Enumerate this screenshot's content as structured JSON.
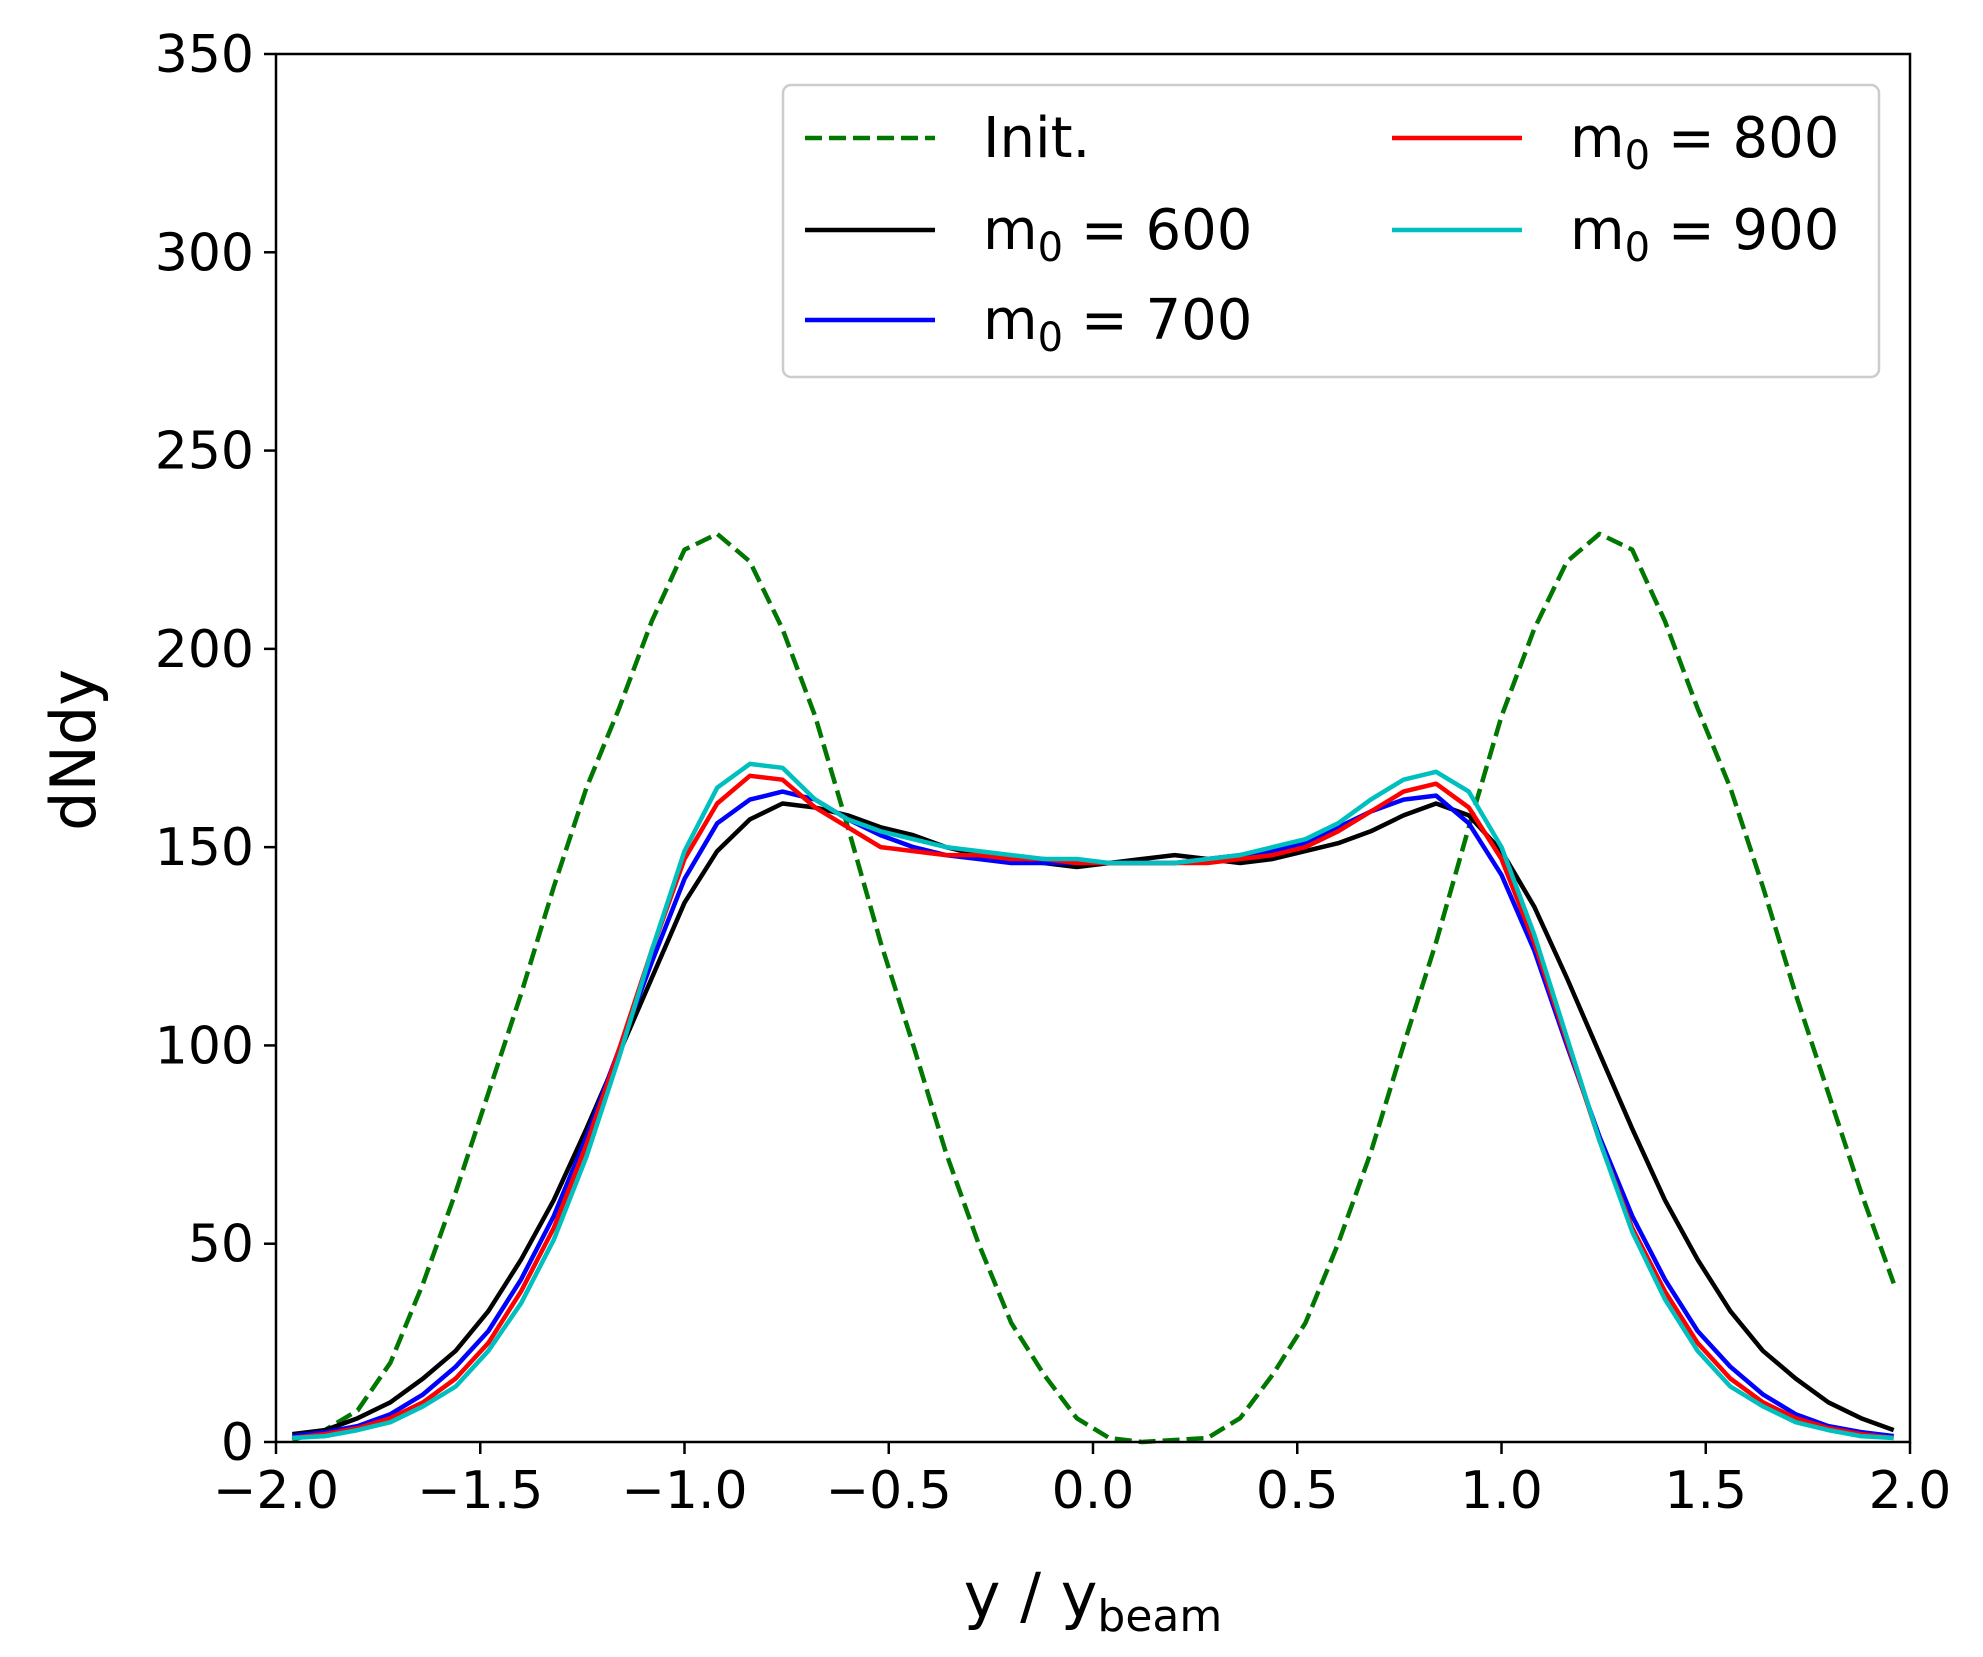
{
  "chart_data": {
    "type": "line",
    "title": "",
    "xlabel": "y / y",
    "xlabel_sub": "beam",
    "ylabel": "dNdy",
    "xlim": [
      -2.0,
      2.0
    ],
    "ylim": [
      0,
      350
    ],
    "xticks": [
      -2.0,
      -1.5,
      -1.0,
      -0.5,
      0.0,
      0.5,
      1.0,
      1.5,
      2.0
    ],
    "xtick_labels": [
      "−2.0",
      "−1.5",
      "−1.0",
      "−0.5",
      "0.0",
      "0.5",
      "1.0",
      "1.5",
      "2.0"
    ],
    "yticks": [
      0,
      50,
      100,
      150,
      200,
      250,
      300,
      350
    ],
    "ytick_labels": [
      "0",
      "50",
      "100",
      "150",
      "200",
      "250",
      "300",
      "350"
    ],
    "grid": false,
    "legend_position": "top-right",
    "legend_columns": 2,
    "x": [
      -1.96,
      -1.88,
      -1.8,
      -1.72,
      -1.64,
      -1.56,
      -1.48,
      -1.4,
      -1.32,
      -1.24,
      -1.16,
      -1.08,
      -1.0,
      -0.92,
      -0.84,
      -0.76,
      -0.68,
      -0.6,
      -0.52,
      -0.44,
      -0.36,
      -0.28,
      -0.2,
      -0.12,
      -0.04,
      0.04,
      0.12,
      0.2,
      0.28,
      0.36,
      0.44,
      0.52,
      0.6,
      0.68,
      0.76,
      0.84,
      0.92,
      1.0,
      1.08,
      1.16,
      1.24,
      1.32,
      1.4,
      1.48,
      1.56,
      1.64,
      1.72,
      1.8,
      1.88,
      1.96
    ],
    "series": [
      {
        "name": "Init.",
        "label_main": "Init.",
        "label_sub": "",
        "label_value": "",
        "color": "#007700",
        "dashed": true,
        "values": [
          0.5,
          3,
          8,
          20,
          40,
          63,
          88,
          113,
          140,
          165,
          185,
          207,
          225,
          229,
          222,
          205,
          183,
          155,
          126,
          100,
          73,
          50,
          30,
          17,
          6,
          1,
          0,
          0.5,
          1,
          6,
          17,
          30,
          50,
          73,
          100,
          126,
          155,
          183,
          205,
          222,
          229,
          225,
          207,
          185,
          165,
          140,
          113,
          88,
          63,
          40
        ]
      },
      {
        "name": "m0 = 600",
        "label_main": "m",
        "label_sub": "0",
        "label_value": " = 600",
        "color": "#000000",
        "dashed": false,
        "values": [
          2,
          3,
          6,
          10,
          16,
          23,
          33,
          46,
          61,
          79,
          98,
          117,
          136,
          149,
          157,
          161,
          160,
          158,
          155,
          153,
          150,
          148,
          147,
          146,
          145,
          146,
          147,
          148,
          147,
          146,
          147,
          149,
          151,
          154,
          158,
          161,
          158,
          149,
          135,
          117,
          98,
          79,
          61,
          46,
          33,
          23,
          16,
          10,
          6,
          3
        ]
      },
      {
        "name": "m0 = 700",
        "label_main": "m",
        "label_sub": "0",
        "label_value": " = 700",
        "color": "#0000ff",
        "dashed": false,
        "values": [
          1.5,
          2.5,
          4,
          7,
          12,
          19,
          28,
          41,
          57,
          77,
          99,
          121,
          142,
          156,
          162,
          164,
          162,
          157,
          153,
          150,
          148,
          147,
          146,
          146,
          146,
          146,
          146,
          146,
          147,
          148,
          149,
          151,
          155,
          159,
          162,
          163,
          156,
          143,
          124,
          100,
          77,
          57,
          41,
          28,
          19,
          12,
          7,
          4,
          2.5,
          1.5
        ]
      },
      {
        "name": "m0 = 800",
        "label_main": "m",
        "label_sub": "0",
        "label_value": " = 800",
        "color": "#ff0000",
        "dashed": false,
        "values": [
          1,
          2,
          3.5,
          6,
          10,
          16,
          25,
          38,
          54,
          75,
          99,
          124,
          147,
          161,
          168,
          167,
          160,
          155,
          150,
          149,
          148,
          148,
          147,
          147,
          146,
          146,
          146,
          146,
          146,
          147,
          148,
          150,
          154,
          159,
          164,
          166,
          160,
          147,
          126,
          101,
          76,
          54,
          38,
          25,
          16,
          10,
          6,
          3.5,
          2,
          1
        ]
      },
      {
        "name": "m0 = 900",
        "label_main": "m",
        "label_sub": "0",
        "label_value": " = 900",
        "color": "#00bfbf",
        "dashed": false,
        "values": [
          1,
          1.5,
          3,
          5,
          9,
          14,
          23,
          35,
          51,
          72,
          97,
          124,
          149,
          165,
          171,
          170,
          162,
          157,
          154,
          152,
          150,
          149,
          148,
          147,
          147,
          146,
          146,
          146,
          147,
          148,
          150,
          152,
          156,
          162,
          167,
          169,
          164,
          150,
          128,
          102,
          76,
          53,
          36,
          23,
          14,
          9,
          5,
          3,
          1.5,
          1
        ]
      }
    ]
  }
}
